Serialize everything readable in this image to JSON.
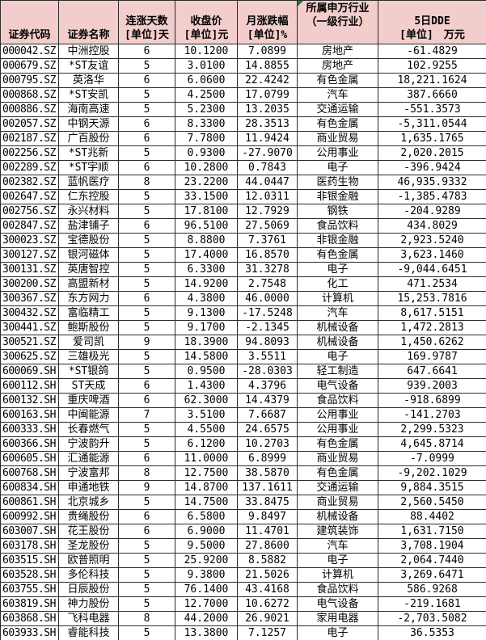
{
  "colors": {
    "header_bg": "#F2CDCB",
    "grid": "#2b2b2b",
    "flag": "#1E7B34",
    "text": "#000000",
    "bg": "#FFFFFF"
  },
  "table": {
    "headers": [
      {
        "line1": "",
        "line2": "证券代码"
      },
      {
        "line1": "",
        "line2": "证券名称"
      },
      {
        "line1": "连涨天数",
        "line2": "[单位]天"
      },
      {
        "line1": "收盘价",
        "line2": "[单位]元"
      },
      {
        "line1": "月涨跌幅",
        "line2": "[单位]%"
      },
      {
        "line1": "所属申万行业",
        "line2": "（一级行业）"
      },
      {
        "line1": "5日DDE",
        "line2": "[单位]　万元"
      }
    ],
    "rows": [
      {
        "code": "000042.SZ",
        "name": "中洲控股",
        "days": "6",
        "close": "10.1200",
        "chg": "7.0899",
        "industry": "房地产",
        "dde": "-61.4829"
      },
      {
        "code": "000679.SZ",
        "name": "*ST友谊",
        "days": "5",
        "close": "3.0100",
        "chg": "14.8855",
        "industry": "房地产",
        "dde": "102.9255"
      },
      {
        "code": "000795.SZ",
        "name": "英洛华",
        "days": "6",
        "close": "6.0600",
        "chg": "22.4242",
        "industry": "有色金属",
        "dde": "18,221.1624"
      },
      {
        "code": "000868.SZ",
        "name": "*ST安凯",
        "days": "5",
        "close": "4.2500",
        "chg": "17.0799",
        "industry": "汽车",
        "dde": "387.6660"
      },
      {
        "code": "000886.SZ",
        "name": "海南高速",
        "days": "5",
        "close": "5.2300",
        "chg": "13.2035",
        "industry": "交通运输",
        "dde": "-551.3573"
      },
      {
        "code": "002057.SZ",
        "name": "中钢天源",
        "days": "6",
        "close": "8.3300",
        "chg": "28.3513",
        "industry": "有色金属",
        "dde": "-5,311.0544"
      },
      {
        "code": "002187.SZ",
        "name": "广百股份",
        "days": "6",
        "close": "7.7800",
        "chg": "11.9424",
        "industry": "商业贸易",
        "dde": "1,635.1765"
      },
      {
        "code": "002256.SZ",
        "name": "*ST兆新",
        "days": "5",
        "close": "0.9300",
        "chg": "-27.9070",
        "industry": "公用事业",
        "dde": "2,020.2015"
      },
      {
        "code": "002289.SZ",
        "name": "*ST宇顺",
        "days": "6",
        "close": "10.2800",
        "chg": "0.7843",
        "industry": "电子",
        "dde": "-396.9424"
      },
      {
        "code": "002382.SZ",
        "name": "蓝帆医疗",
        "days": "8",
        "close": "23.2200",
        "chg": "44.0447",
        "industry": "医药生物",
        "dde": "46,935.9332"
      },
      {
        "code": "002647.SZ",
        "name": "仁东控股",
        "days": "5",
        "close": "33.1500",
        "chg": "12.0311",
        "industry": "非银金融",
        "dde": "-1,385.4783"
      },
      {
        "code": "002756.SZ",
        "name": "永兴材料",
        "days": "5",
        "close": "17.8100",
        "chg": "12.7929",
        "industry": "钢铁",
        "dde": "-204.9289"
      },
      {
        "code": "002847.SZ",
        "name": "盐津铺子",
        "days": "6",
        "close": "96.5100",
        "chg": "27.5069",
        "industry": "食品饮料",
        "dde": "434.8029"
      },
      {
        "code": "300023.SZ",
        "name": "宝德股份",
        "days": "5",
        "close": "8.8800",
        "chg": "7.3761",
        "industry": "非银金融",
        "dde": "2,923.5240"
      },
      {
        "code": "300127.SZ",
        "name": "银河磁体",
        "days": "5",
        "close": "17.4000",
        "chg": "16.8570",
        "industry": "有色金属",
        "dde": "3,623.1460"
      },
      {
        "code": "300131.SZ",
        "name": "英唐智控",
        "days": "5",
        "close": "6.3300",
        "chg": "31.3278",
        "industry": "电子",
        "dde": "-9,044.6451"
      },
      {
        "code": "300200.SZ",
        "name": "高盟新材",
        "days": "5",
        "close": "14.9200",
        "chg": "2.7548",
        "industry": "化工",
        "dde": "471.2534"
      },
      {
        "code": "300367.SZ",
        "name": "东方网力",
        "days": "6",
        "close": "4.3800",
        "chg": "46.0000",
        "industry": "计算机",
        "dde": "15,253.7816"
      },
      {
        "code": "300432.SZ",
        "name": "富临精工",
        "days": "5",
        "close": "9.1300",
        "chg": "-17.5248",
        "industry": "汽车",
        "dde": "8,617.5151"
      },
      {
        "code": "300441.SZ",
        "name": "鲍斯股份",
        "days": "5",
        "close": "9.1700",
        "chg": "-2.1345",
        "industry": "机械设备",
        "dde": "1,472.2813"
      },
      {
        "code": "300521.SZ",
        "name": "爱司凯",
        "days": "9",
        "close": "18.3900",
        "chg": "94.8093",
        "industry": "机械设备",
        "dde": "1,450.6262"
      },
      {
        "code": "300625.SZ",
        "name": "三雄极光",
        "days": "5",
        "close": "14.5800",
        "chg": "3.5511",
        "industry": "电子",
        "dde": "169.9787"
      },
      {
        "code": "600069.SH",
        "name": "*ST银鸽",
        "days": "5",
        "close": "0.9500",
        "chg": "-28.0303",
        "industry": "轻工制造",
        "dde": "647.6641"
      },
      {
        "code": "600112.SH",
        "name": "ST天成",
        "days": "6",
        "close": "1.4300",
        "chg": "4.3796",
        "industry": "电气设备",
        "dde": "939.2003"
      },
      {
        "code": "600132.SH",
        "name": "重庆啤酒",
        "days": "6",
        "close": "62.3000",
        "chg": "14.4379",
        "industry": "食品饮料",
        "dde": "-918.6899"
      },
      {
        "code": "600163.SH",
        "name": "中闽能源",
        "days": "7",
        "close": "3.5100",
        "chg": "7.6687",
        "industry": "公用事业",
        "dde": "-141.2703"
      },
      {
        "code": "600333.SH",
        "name": "长春燃气",
        "days": "5",
        "close": "4.5500",
        "chg": "24.6575",
        "industry": "公用事业",
        "dde": "2,299.5323"
      },
      {
        "code": "600366.SH",
        "name": "宁波韵升",
        "days": "5",
        "close": "6.1200",
        "chg": "10.2703",
        "industry": "有色金属",
        "dde": "4,645.8714"
      },
      {
        "code": "600605.SH",
        "name": "汇通能源",
        "days": "6",
        "close": "11.0000",
        "chg": "6.8999",
        "industry": "商业贸易",
        "dde": "-7.0999"
      },
      {
        "code": "600768.SH",
        "name": "宁波富邦",
        "days": "8",
        "close": "12.7500",
        "chg": "38.5870",
        "industry": "有色金属",
        "dde": "-9,202.1029"
      },
      {
        "code": "600834.SH",
        "name": "申通地铁",
        "days": "9",
        "close": "14.8700",
        "chg": "137.1611",
        "industry": "交通运输",
        "dde": "9,884.3515"
      },
      {
        "code": "600861.SH",
        "name": "北京城乡",
        "days": "5",
        "close": "14.7500",
        "chg": "33.8475",
        "industry": "商业贸易",
        "dde": "2,560.5450"
      },
      {
        "code": "600992.SH",
        "name": "贵绳股份",
        "days": "6",
        "close": "6.5800",
        "chg": "9.8497",
        "industry": "机械设备",
        "dde": "88.4402"
      },
      {
        "code": "603007.SH",
        "name": "花王股份",
        "days": "6",
        "close": "6.9000",
        "chg": "11.4701",
        "industry": "建筑装饰",
        "dde": "1,631.7150"
      },
      {
        "code": "603178.SH",
        "name": "圣龙股份",
        "days": "5",
        "close": "9.5000",
        "chg": "27.8600",
        "industry": "汽车",
        "dde": "3,708.1904"
      },
      {
        "code": "603515.SH",
        "name": "欧普照明",
        "days": "5",
        "close": "25.9200",
        "chg": "8.5882",
        "industry": "电子",
        "dde": "2,064.7440"
      },
      {
        "code": "603528.SH",
        "name": "多伦科技",
        "days": "5",
        "close": "9.3800",
        "chg": "21.5026",
        "industry": "计算机",
        "dde": "3,269.6471"
      },
      {
        "code": "603755.SH",
        "name": "日辰股份",
        "days": "5",
        "close": "76.1400",
        "chg": "43.4168",
        "industry": "食品饮料",
        "dde": "586.9268"
      },
      {
        "code": "603819.SH",
        "name": "神力股份",
        "days": "5",
        "close": "12.7000",
        "chg": "10.6272",
        "industry": "电气设备",
        "dde": "-219.1681"
      },
      {
        "code": "603868.SH",
        "name": "飞科电器",
        "days": "8",
        "close": "44.2000",
        "chg": "26.9021",
        "industry": "家用电器",
        "dde": "-2,703.5082"
      },
      {
        "code": "603933.SH",
        "name": "睿能科技",
        "days": "5",
        "close": "13.3800",
        "chg": "7.1257",
        "industry": "电子",
        "dde": "36.5353"
      }
    ]
  }
}
